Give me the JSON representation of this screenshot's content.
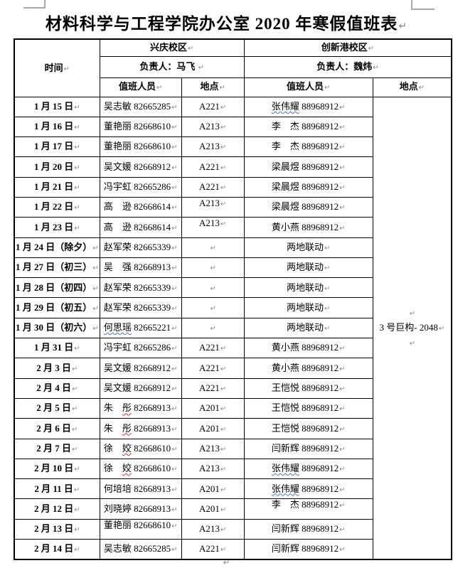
{
  "document": {
    "title": "材料科学与工程学院办公室 2020 年寒假值班表"
  },
  "marks": {
    "pilcrow": "↵"
  },
  "colors": {
    "text": "#000000",
    "border": "#000000",
    "pilcrow_gray": "#8a8a8a",
    "spellcheck_red": "#d93025",
    "grammar_blue": "#4a73d1",
    "crop_mark_gray": "#a9a9a9"
  },
  "table": {
    "header": {
      "time_label": "时间",
      "xq_campus": "兴庆校区",
      "xq_manager": "负责人：马飞 ",
      "cx_campus": "创新港校区",
      "cx_manager": "负责人：魏炜",
      "staff_label": "值班人员",
      "location_label": "地点"
    },
    "cx_location_lines": [
      "",
      "3 号巨构- 2048",
      ""
    ],
    "rows": [
      {
        "date": "1 月 15 日",
        "xq_n1": "吴志敏",
        "xq_phone": "82665285",
        "xq_loc": "A221",
        "cx_n2": "张伟耀",
        "cx_wavy": "blue",
        "cx_phone": "88968912"
      },
      {
        "date": "1 月 16 日",
        "xq_n1": "董艳丽",
        "xq_phone": "82668610",
        "xq_loc": "A213",
        "cx_n1": "李　杰",
        "cx_phone": "88968912"
      },
      {
        "date": "1 月 17 日",
        "xq_n1": "董艳丽",
        "xq_phone": "82668610",
        "xq_loc": "A213",
        "cx_n1": "李　杰",
        "cx_phone": "88968912"
      },
      {
        "date": "1 月 20 日",
        "xq_n1": "吴文媛",
        "xq_phone": "82668912",
        "xq_loc": "A221",
        "cx_n1": "梁晨煜",
        "cx_phone": "88968912"
      },
      {
        "date": "1 月 21 日",
        "xq_n1": "冯宇虹",
        "xq_phone": "82665286",
        "xq_loc": "A221",
        "cx_n1": "梁晨煜",
        "cx_phone": "88968912"
      },
      {
        "date": "1 月 22 日",
        "xq_n1": "高　逊",
        "xq_phone": "82668614",
        "xq_loc": "A213",
        "xq_loc_top": true,
        "cx_n1": "梁晨煜",
        "cx_phone": "88968912"
      },
      {
        "date": "1 月 23 日",
        "xq_n1": "高　逊",
        "xq_phone": "82668614",
        "xq_loc": "A213",
        "xq_loc_top": true,
        "cx_n1": "黄小燕",
        "cx_phone": "88968912"
      },
      {
        "date": "1 月 24 日（除夕）",
        "xq_n1": "赵军荣",
        "xq_phone": "82665339",
        "xq_loc": "",
        "cx_n1": "两地联动",
        "cx_phone": ""
      },
      {
        "date": "1 月 27 日（初三）",
        "xq_n1": "吴　强",
        "xq_phone": "82668913",
        "xq_loc": "",
        "cx_n1": "两地联动",
        "cx_phone": ""
      },
      {
        "date": "1 月 28 日（初四）",
        "xq_n1": "赵军荣",
        "xq_phone": "82665339",
        "xq_loc": "",
        "cx_n1": "两地联动",
        "cx_phone": ""
      },
      {
        "date": "1 月 29 日（初五）",
        "xq_n1": "赵军荣",
        "xq_phone": "82665339",
        "xq_loc": "",
        "cx_n1": "两地联动",
        "cx_phone": ""
      },
      {
        "date": "1 月 30 日（初六）",
        "xq_n2": "何思瑶",
        "xq_wavy": "blue",
        "xq_phone": "82665221",
        "xq_loc": "",
        "cx_n1": "两地联动",
        "cx_phone": ""
      },
      {
        "date": "1 月 31 日",
        "xq_n1": "冯宇虹",
        "xq_phone": "82665286",
        "xq_loc": "A221",
        "cx_n1": "黄小燕",
        "cx_phone": "88968912"
      },
      {
        "date": "2 月 3 日",
        "xq_n1": "吴文媛",
        "xq_phone": "82668912",
        "xq_loc": "A221",
        "cx_n1": "黄小燕",
        "cx_phone": "88968912"
      },
      {
        "date": "2 月 4 日",
        "xq_n1": "吴文媛",
        "xq_phone": "82668912",
        "xq_loc": "A221",
        "cx_n1": "王恺悦",
        "cx_phone": "88968912"
      },
      {
        "date": "2 月 5 日",
        "xq_n1": "朱　",
        "xq_n2": "彤",
        "xq_wavy": "red",
        "xq_phone": "82668913",
        "xq_loc": "A201",
        "cx_n1": "王恺悦",
        "cx_phone": "88968912"
      },
      {
        "date": "2 月 6 日",
        "xq_n1": "朱　",
        "xq_n2": "彤",
        "xq_wavy": "red",
        "xq_phone": "82668913",
        "xq_loc": "A201",
        "cx_n1": "王恺悦",
        "cx_phone": "88968912"
      },
      {
        "date": "2 月 7 日",
        "xq_n1": "徐　",
        "xq_n2": "姣",
        "xq_wavy": "red",
        "xq_phone": "82668610",
        "xq_loc": "A213",
        "cx_n1": "闫新辉",
        "cx_phone": "88968912"
      },
      {
        "date": "2 月 10 日",
        "xq_n1": "徐　",
        "xq_n2": "姣",
        "xq_wavy": "red",
        "xq_phone": "82668610",
        "xq_loc": "A213",
        "cx_n2": "张伟耀",
        "cx_wavy": "blue",
        "cx_phone": "88968912"
      },
      {
        "date": "2 月 11 日",
        "xq_n1": "何培培",
        "xq_phone": "82668913",
        "xq_loc": "A201",
        "cx_n2": "张伟耀",
        "cx_wavy": "blue",
        "cx_phone": "88968912"
      },
      {
        "date": "2 月 12 日",
        "xq_n1": "刘晓婷",
        "xq_phone": "82668913",
        "xq_loc": "A201",
        "cx_n1": "李　杰",
        "cx_phone": "88968912",
        "cx_top": true
      },
      {
        "date": "2 月 13 日",
        "xq_n1": "董艳丽",
        "xq_phone": "82668610",
        "xq_loc": "A213",
        "xq_top": true,
        "cx_n1": "闫新辉",
        "cx_phone": "88968912"
      },
      {
        "date": "2 月 14 日",
        "xq_n1": "吴志敏",
        "xq_phone": "82665285",
        "xq_loc": "A221",
        "cx_n1": "闫新辉",
        "cx_phone": "88968912"
      }
    ]
  }
}
